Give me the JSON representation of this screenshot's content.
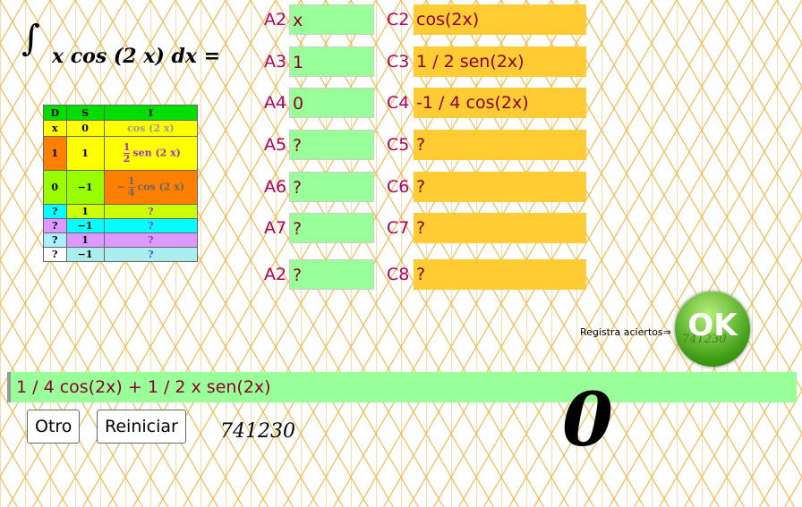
{
  "formula": {
    "integral": "∫",
    "expression": "x cos (2 x) dx ="
  },
  "table": {
    "header": [
      "D",
      "S",
      "I"
    ],
    "rows": [
      [
        "x",
        "0",
        "cos (2 x)"
      ],
      [
        "1",
        "1",
        {
          "sign": "",
          "numerator": "1",
          "denominator": "2",
          "rest": "sen (2 x)"
        }
      ],
      [
        "0",
        "−1",
        {
          "sign": "−",
          "numerator": "1",
          "denominator": "4",
          "rest": "cos (2 x)"
        }
      ],
      [
        "?",
        "1",
        "?"
      ],
      [
        "?",
        "−1",
        "?"
      ],
      [
        "?",
        "1",
        "?"
      ],
      [
        "?",
        "−1",
        "?"
      ]
    ]
  },
  "fields_a": [
    {
      "label": "A2",
      "value": "x"
    },
    {
      "label": "A3",
      "value": "1"
    },
    {
      "label": "A4",
      "value": "0"
    },
    {
      "label": "A5",
      "value": "?"
    },
    {
      "label": "A6",
      "value": "?"
    },
    {
      "label": "A7",
      "value": "?"
    },
    {
      "label": "A2",
      "value": "?"
    }
  ],
  "fields_c": [
    {
      "label": "C2",
      "value": "cos(2x)"
    },
    {
      "label": "C3",
      "value": "1 / 2 sen(2x)"
    },
    {
      "label": "C4",
      "value": "-1 / 4 cos(2x)"
    },
    {
      "label": "C5",
      "value": "?"
    },
    {
      "label": "C6",
      "value": "?"
    },
    {
      "label": "C7",
      "value": "?"
    },
    {
      "label": "C8",
      "value": "?"
    }
  ],
  "register_label": "Registra aciertos⇒",
  "ok_button": "OK",
  "ok_code": "741230",
  "answer_input": "1 / 4 cos(2x) + 1 / 2 x sen(2x)",
  "buttons": [
    "Otro",
    "Reiniciar"
  ],
  "code": "741230",
  "score": "0"
}
